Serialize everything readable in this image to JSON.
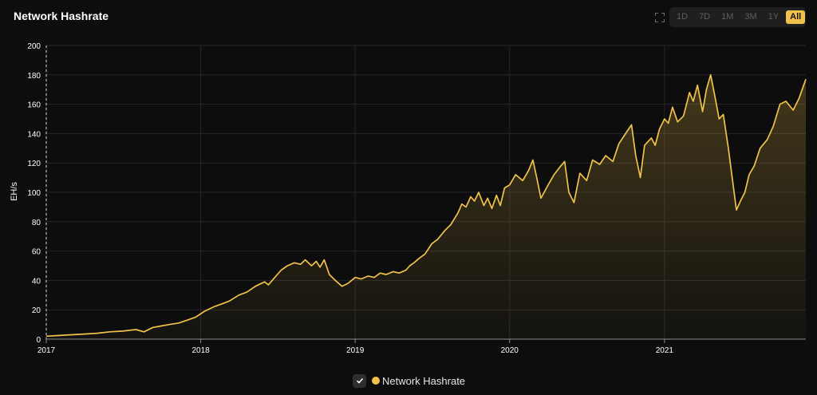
{
  "title": "Network Hashrate",
  "toolbar": {
    "fullscreen_icon": "fullscreen-icon",
    "ranges": [
      "1D",
      "7D",
      "1M",
      "3M",
      "1Y",
      "All"
    ],
    "active_range": "All"
  },
  "legend": {
    "label": "Network Hashrate",
    "checked": true,
    "check_icon": "checkmark-icon"
  },
  "colors": {
    "background": "#0d0d0d",
    "accent": "#f1c24b",
    "grid": "#262626",
    "text": "#ffffff"
  },
  "chart_data": {
    "type": "area",
    "title": "Network Hashrate",
    "xlabel": "",
    "ylabel": "EH/s",
    "ylim": [
      0,
      200
    ],
    "xlim": [
      "2017-01",
      "2021-12"
    ],
    "y_ticks": [
      "0",
      "20",
      "40",
      "60",
      "80",
      "100",
      "120",
      "140",
      "160",
      "180",
      "200"
    ],
    "x_ticks": [
      "2017",
      "2018",
      "2019",
      "2020",
      "2021"
    ],
    "grid": true,
    "legend_position": "bottom-center",
    "series": [
      {
        "name": "Network Hashrate",
        "color": "#f1c24b",
        "points": [
          [
            "2017-01-01",
            2
          ],
          [
            "2017-02-01",
            2.5
          ],
          [
            "2017-03-01",
            3
          ],
          [
            "2017-04-01",
            3.5
          ],
          [
            "2017-05-01",
            4
          ],
          [
            "2017-06-01",
            5
          ],
          [
            "2017-07-01",
            5.5
          ],
          [
            "2017-08-01",
            6.5
          ],
          [
            "2017-08-20",
            5
          ],
          [
            "2017-09-10",
            8
          ],
          [
            "2017-10-01",
            9
          ],
          [
            "2017-10-20",
            10
          ],
          [
            "2017-11-10",
            11
          ],
          [
            "2017-12-01",
            13
          ],
          [
            "2017-12-20",
            15
          ],
          [
            "2018-01-10",
            19
          ],
          [
            "2018-02-01",
            22
          ],
          [
            "2018-02-20",
            24
          ],
          [
            "2018-03-10",
            26
          ],
          [
            "2018-04-01",
            30
          ],
          [
            "2018-04-20",
            32
          ],
          [
            "2018-05-10",
            36
          ],
          [
            "2018-06-01",
            39
          ],
          [
            "2018-06-10",
            37
          ],
          [
            "2018-06-25",
            42
          ],
          [
            "2018-07-10",
            47
          ],
          [
            "2018-07-25",
            50
          ],
          [
            "2018-08-10",
            52
          ],
          [
            "2018-08-25",
            51
          ],
          [
            "2018-09-05",
            54
          ],
          [
            "2018-09-20",
            50
          ],
          [
            "2018-10-01",
            53
          ],
          [
            "2018-10-10",
            49
          ],
          [
            "2018-10-20",
            54
          ],
          [
            "2018-11-01",
            44
          ],
          [
            "2018-11-15",
            40
          ],
          [
            "2018-12-01",
            36
          ],
          [
            "2018-12-15",
            38
          ],
          [
            "2019-01-01",
            42
          ],
          [
            "2019-01-15",
            41
          ],
          [
            "2019-02-01",
            43
          ],
          [
            "2019-02-15",
            42
          ],
          [
            "2019-03-01",
            45
          ],
          [
            "2019-03-15",
            44
          ],
          [
            "2019-04-01",
            46
          ],
          [
            "2019-04-15",
            45
          ],
          [
            "2019-05-01",
            47
          ],
          [
            "2019-05-10",
            50
          ],
          [
            "2019-05-20",
            52
          ],
          [
            "2019-06-01",
            55
          ],
          [
            "2019-06-15",
            58
          ],
          [
            "2019-07-01",
            65
          ],
          [
            "2019-07-15",
            68
          ],
          [
            "2019-08-01",
            74
          ],
          [
            "2019-08-15",
            78
          ],
          [
            "2019-09-01",
            86
          ],
          [
            "2019-09-10",
            92
          ],
          [
            "2019-09-20",
            90
          ],
          [
            "2019-10-01",
            97
          ],
          [
            "2019-10-10",
            94
          ],
          [
            "2019-10-20",
            100
          ],
          [
            "2019-11-01",
            91
          ],
          [
            "2019-11-10",
            96
          ],
          [
            "2019-11-20",
            89
          ],
          [
            "2019-12-01",
            98
          ],
          [
            "2019-12-10",
            91
          ],
          [
            "2019-12-20",
            103
          ],
          [
            "2020-01-01",
            105
          ],
          [
            "2020-01-15",
            112
          ],
          [
            "2020-02-01",
            108
          ],
          [
            "2020-02-15",
            115
          ],
          [
            "2020-02-25",
            122
          ],
          [
            "2020-03-05",
            110
          ],
          [
            "2020-03-15",
            96
          ],
          [
            "2020-04-01",
            105
          ],
          [
            "2020-04-15",
            112
          ],
          [
            "2020-05-01",
            118
          ],
          [
            "2020-05-10",
            121
          ],
          [
            "2020-05-20",
            100
          ],
          [
            "2020-06-01",
            93
          ],
          [
            "2020-06-15",
            113
          ],
          [
            "2020-07-01",
            108
          ],
          [
            "2020-07-15",
            122
          ],
          [
            "2020-08-01",
            119
          ],
          [
            "2020-08-15",
            125
          ],
          [
            "2020-09-01",
            121
          ],
          [
            "2020-09-15",
            133
          ],
          [
            "2020-10-01",
            140
          ],
          [
            "2020-10-15",
            146
          ],
          [
            "2020-10-25",
            125
          ],
          [
            "2020-11-05",
            110
          ],
          [
            "2020-11-15",
            132
          ],
          [
            "2020-12-01",
            137
          ],
          [
            "2020-12-10",
            132
          ],
          [
            "2020-12-20",
            143
          ],
          [
            "2021-01-01",
            150
          ],
          [
            "2021-01-10",
            147
          ],
          [
            "2021-01-20",
            158
          ],
          [
            "2021-02-01",
            148
          ],
          [
            "2021-02-15",
            152
          ],
          [
            "2021-03-01",
            168
          ],
          [
            "2021-03-10",
            162
          ],
          [
            "2021-03-20",
            173
          ],
          [
            "2021-04-01",
            155
          ],
          [
            "2021-04-10",
            170
          ],
          [
            "2021-04-20",
            180
          ],
          [
            "2021-05-01",
            164
          ],
          [
            "2021-05-10",
            150
          ],
          [
            "2021-05-20",
            153
          ],
          [
            "2021-06-01",
            130
          ],
          [
            "2021-06-10",
            110
          ],
          [
            "2021-06-20",
            88
          ],
          [
            "2021-07-01",
            95
          ],
          [
            "2021-07-10",
            100
          ],
          [
            "2021-07-20",
            112
          ],
          [
            "2021-08-01",
            118
          ],
          [
            "2021-08-15",
            130
          ],
          [
            "2021-09-01",
            136
          ],
          [
            "2021-09-15",
            145
          ],
          [
            "2021-10-01",
            160
          ],
          [
            "2021-10-15",
            162
          ],
          [
            "2021-11-01",
            156
          ],
          [
            "2021-11-15",
            164
          ],
          [
            "2021-12-01",
            177
          ]
        ]
      }
    ]
  }
}
